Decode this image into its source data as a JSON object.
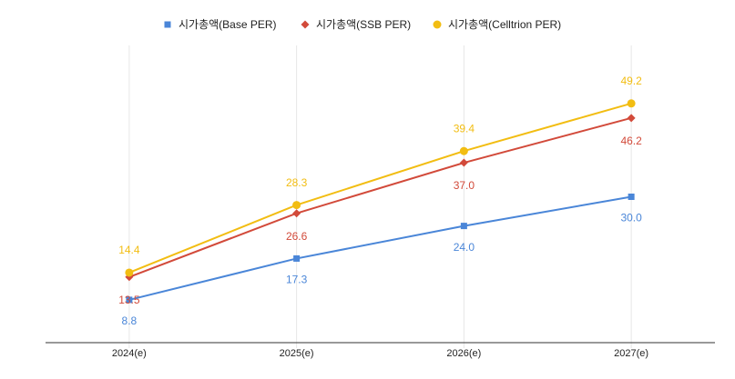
{
  "chart_data": {
    "type": "line",
    "categories": [
      "2024(e)",
      "2025(e)",
      "2026(e)",
      "2027(e)"
    ],
    "series": [
      {
        "name": "시가총액(Base PER)",
        "color": "#4a86d8",
        "values": [
          8.8,
          17.3,
          24.0,
          30.0
        ],
        "value_labels": [
          "8.8",
          "17.3",
          "24.0",
          "30.0"
        ]
      },
      {
        "name": "시가총액(SSB PER)",
        "color": "#d24a3a",
        "values": [
          13.5,
          26.6,
          37.0,
          46.2
        ],
        "value_labels": [
          "13.5",
          "26.6",
          "37.0",
          "46.2"
        ]
      },
      {
        "name": "시가총액(Celltrion PER)",
        "color": "#f2bd12",
        "values": [
          14.4,
          28.3,
          39.4,
          49.2
        ],
        "value_labels": [
          "14.4",
          "28.3",
          "39.4",
          "49.2"
        ]
      }
    ],
    "ylim": [
      0,
      60
    ],
    "legend": "top"
  }
}
